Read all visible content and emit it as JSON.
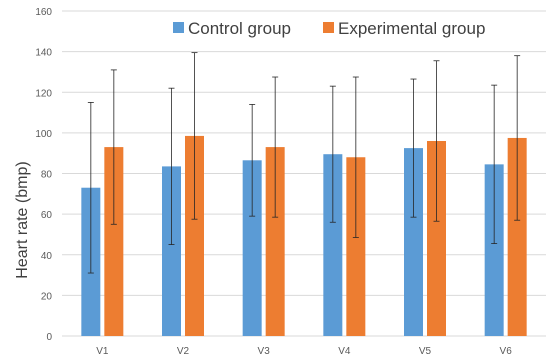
{
  "chart_data": {
    "type": "bar",
    "title": "",
    "xlabel": "",
    "ylabel": "Heart rate (bmp)",
    "ylim": [
      0,
      160
    ],
    "yticks": [
      0,
      20,
      40,
      60,
      80,
      100,
      120,
      140,
      160
    ],
    "grid": "horizontal",
    "legend_position": "top",
    "categories": [
      "V1",
      "V2",
      "V3",
      "V4",
      "V5",
      "V6"
    ],
    "series": [
      {
        "name": "Control group",
        "color": "#5b9bd5",
        "values": [
          73,
          83.5,
          86.5,
          89.5,
          92.5,
          84.5
        ],
        "error": [
          42,
          38.5,
          27.5,
          33.5,
          34,
          39
        ]
      },
      {
        "name": "Experimental group",
        "color": "#ed7d31",
        "values": [
          93,
          98.5,
          93,
          88,
          96,
          97.5
        ],
        "error": [
          38,
          41,
          34.5,
          39.5,
          39.5,
          40.5
        ]
      }
    ]
  }
}
